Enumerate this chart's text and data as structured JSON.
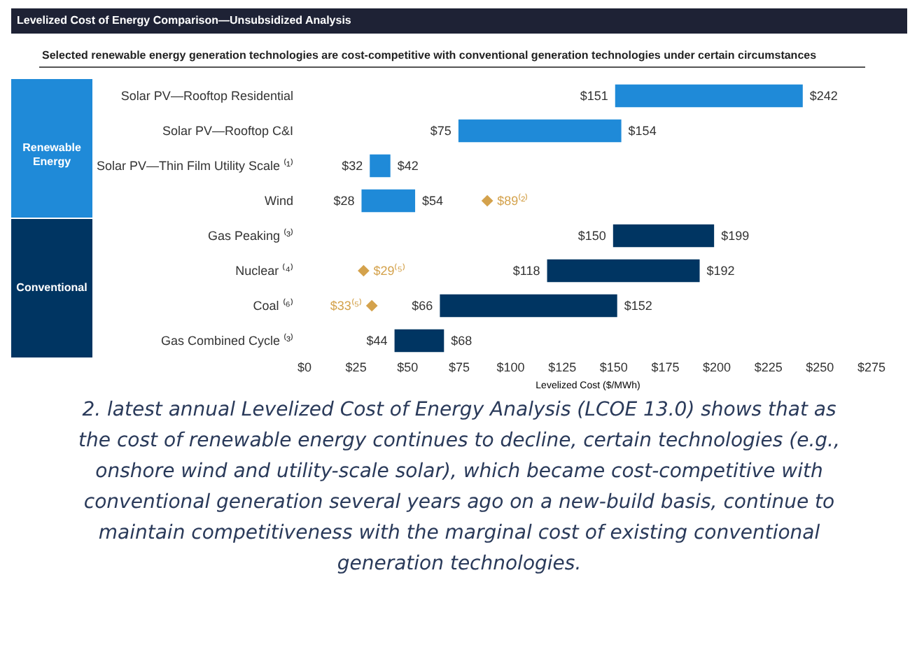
{
  "chart_data": {
    "type": "bar",
    "orientation": "horizontal",
    "title": "Levelized Cost of Energy Comparison—Unsubsidized Analysis",
    "subtitle": "Selected renewable energy generation technologies are cost-competitive with conventional generation technologies under certain circumstances",
    "categories": [
      "Solar PV—Rooftop Residential",
      "Solar PV—Rooftop C&I",
      "Solar PV—Thin Film Utility Scale ⁽¹⁾",
      "Wind",
      "Gas Peaking ⁽³⁾",
      "Nuclear ⁽⁴⁾",
      "Coal ⁽⁶⁾",
      "Gas Combined Cycle ⁽³⁾"
    ],
    "series": [
      {
        "base": [
          151,
          75,
          32,
          28,
          150,
          118,
          66,
          44
        ],
        "values": [
          91,
          79,
          10,
          26,
          49,
          74,
          86,
          24
        ],
        "colors": [
          "#1f8ad8",
          "#1f8ad8",
          "#1f8ad8",
          "#1f8ad8",
          "#003562",
          "#003562",
          "#003562",
          "#003562"
        ]
      },
      {
        "type": "scatter",
        "x": [
          "Wind",
          "Nuclear ⁽⁴⁾",
          "Coal ⁽⁶⁾"
        ],
        "values": [
          89,
          29,
          33
        ],
        "color": "#d4a24c",
        "marker": "diamond",
        "value_labels": [
          "$89⁽²⁾",
          "$29⁽⁵⁾",
          "$33⁽⁵⁾"
        ]
      }
    ],
    "xlim": [
      0,
      275
    ],
    "xticks": [
      {
        "value": 0,
        "label": "$0"
      },
      {
        "value": 25,
        "label": "$25"
      },
      {
        "value": 50,
        "label": "$50"
      },
      {
        "value": 75,
        "label": "$75"
      },
      {
        "value": 100,
        "label": "$100"
      },
      {
        "value": 125,
        "label": "$125"
      },
      {
        "value": 150,
        "label": "$150"
      },
      {
        "value": 175,
        "label": "$175"
      },
      {
        "value": 200,
        "label": "$200"
      },
      {
        "value": 225,
        "label": "$225"
      },
      {
        "value": 250,
        "label": "$250"
      },
      {
        "value": 275,
        "label": "$275"
      }
    ],
    "xlabel": "Levelized Cost ($/MWh)",
    "grid": false,
    "annotations": [
      "Renewable Energy",
      "Conventional",
      "2. latest annual Levelized Cost of Energy Analysis (LCOE 13.0) shows that as the cost of renewable energy continues to decline, certain technologies (e.g., onshore wind and utility-scale solar), which became cost-competitive with conventional generation several years ago on a new-build basis, continue to maintain competitiveness with the marginal cost of existing conventional generation technologies.",
      {
        "text": "$151",
        "x": 151,
        "y": "Solar PV—Rooftop Residential"
      },
      {
        "text": "$242",
        "x": 242,
        "y": "Solar PV—Rooftop Residential"
      },
      {
        "text": "$75",
        "x": 75,
        "y": "Solar PV—Rooftop C&I"
      },
      {
        "text": "$154",
        "x": 154,
        "y": "Solar PV—Rooftop C&I"
      },
      {
        "text": "$32",
        "x": 32,
        "y": "Solar PV—Thin Film Utility Scale ⁽¹⁾"
      },
      {
        "text": "$42",
        "x": 42,
        "y": "Solar PV—Thin Film Utility Scale ⁽¹⁾"
      },
      {
        "text": "$28",
        "x": 28,
        "y": "Wind"
      },
      {
        "text": "$54",
        "x": 54,
        "y": "Wind"
      },
      {
        "text": "$150",
        "x": 150,
        "y": "Gas Peaking ⁽³⁾"
      },
      {
        "text": "$199",
        "x": 199,
        "y": "Gas Peaking ⁽³⁾"
      },
      {
        "text": "$118",
        "x": 118,
        "y": "Nuclear ⁽⁴⁾"
      },
      {
        "text": "$192",
        "x": 192,
        "y": "Nuclear ⁽⁴⁾"
      },
      {
        "text": "$66",
        "x": 66,
        "y": "Coal ⁽⁶⁾"
      },
      {
        "text": "$152",
        "x": 152,
        "y": "Coal ⁽⁶⁾"
      },
      {
        "text": "$44",
        "x": 44,
        "y": "Gas Combined Cycle ⁽³⁾"
      },
      {
        "text": "$68",
        "x": 68,
        "y": "Gas Combined Cycle ⁽³⁾"
      }
    ]
  }
}
